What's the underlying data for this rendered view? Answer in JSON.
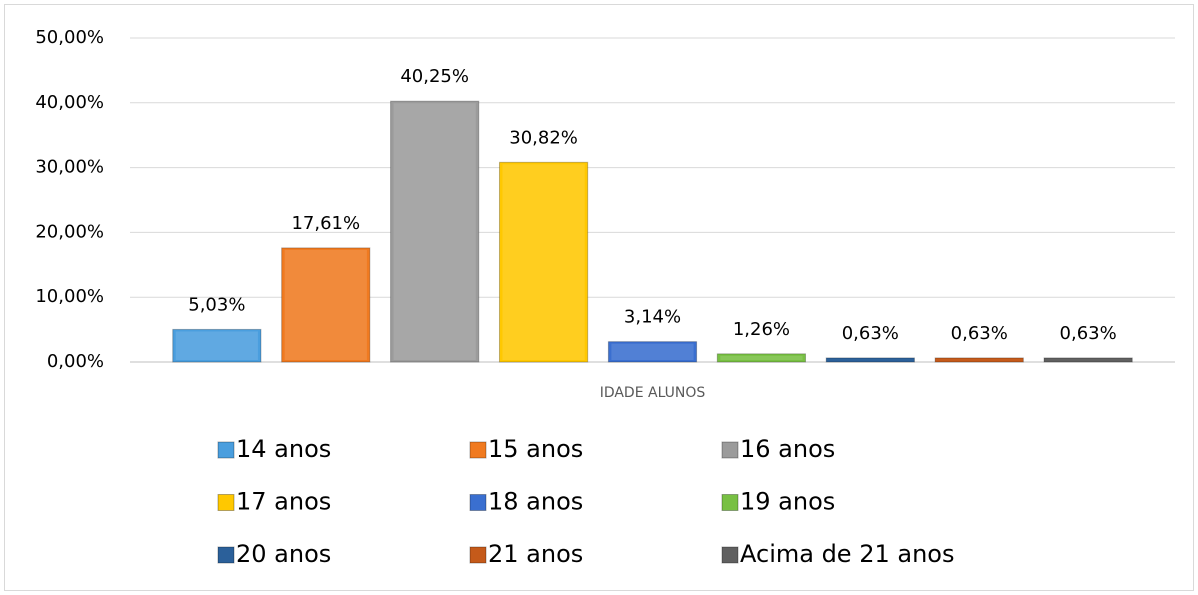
{
  "chart_data": {
    "type": "bar",
    "categories": [
      "IDADE ALUNOS"
    ],
    "series": [
      {
        "name": "14 anos",
        "color": "#4a9ede",
        "values": [
          5.03
        ],
        "value_labels": [
          "5,03%"
        ]
      },
      {
        "name": "15 anos",
        "color": "#f07a20",
        "values": [
          17.61
        ],
        "value_labels": [
          "17,61%"
        ]
      },
      {
        "name": "16 anos",
        "color": "#9b9b9b",
        "values": [
          40.25
        ],
        "value_labels": [
          "40,25%"
        ]
      },
      {
        "name": "17 anos",
        "color": "#ffc800",
        "values": [
          30.82
        ],
        "value_labels": [
          "30,82%"
        ]
      },
      {
        "name": "18 anos",
        "color": "#3a6fd0",
        "values": [
          3.14
        ],
        "value_labels": [
          "3,14%"
        ]
      },
      {
        "name": "19 anos",
        "color": "#78c043",
        "values": [
          1.26
        ],
        "value_labels": [
          "1,26%"
        ]
      },
      {
        "name": "20 anos",
        "color": "#2b609a",
        "values": [
          0.63
        ],
        "value_labels": [
          "0,63%"
        ]
      },
      {
        "name": "21 anos",
        "color": "#c55a1a",
        "values": [
          0.63
        ],
        "value_labels": [
          "0,63%"
        ]
      },
      {
        "name": "Acima de 21 anos",
        "color": "#606060",
        "values": [
          0.63
        ],
        "value_labels": [
          "0,63%"
        ]
      }
    ],
    "ylim": [
      0,
      50
    ],
    "yticks": [
      {
        "value": 0,
        "label": "0,00%"
      },
      {
        "value": 10,
        "label": "10,00%"
      },
      {
        "value": 20,
        "label": "20,00%"
      },
      {
        "value": 30,
        "label": "30,00%"
      },
      {
        "value": 40,
        "label": "40,00%"
      },
      {
        "value": 50,
        "label": "50,00%"
      }
    ],
    "grid": true,
    "legend": "bottom"
  }
}
